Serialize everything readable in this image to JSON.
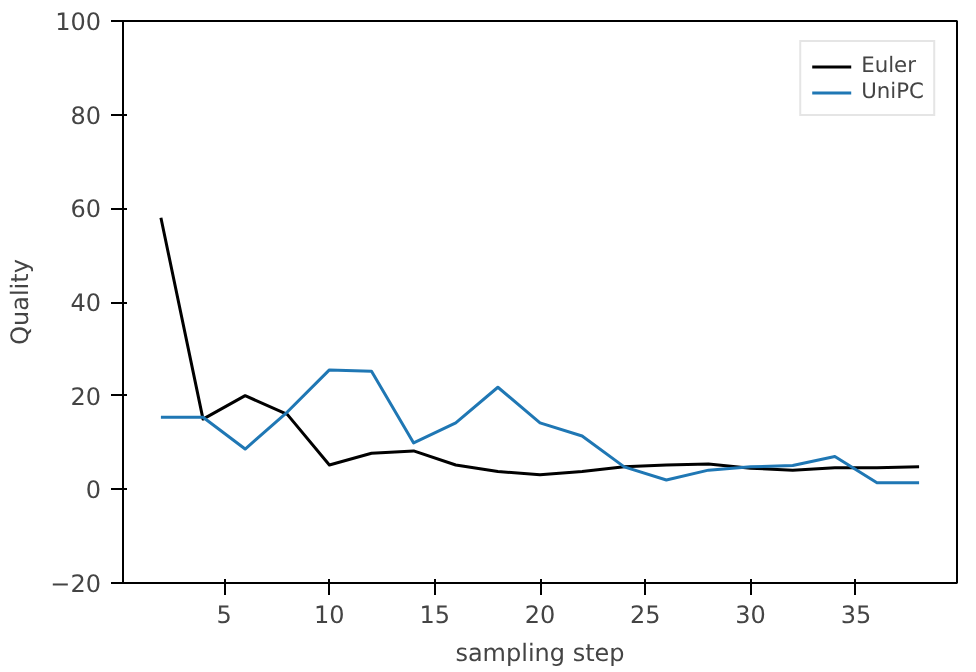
{
  "chart_data": {
    "type": "line",
    "xlabel": "sampling step",
    "ylabel": "Quality",
    "x": [
      2,
      4,
      6,
      8,
      10,
      12,
      14,
      16,
      18,
      20,
      22,
      24,
      26,
      28,
      30,
      32,
      34,
      36,
      38
    ],
    "series": [
      {
        "name": "Euler",
        "color": "#000000",
        "values": [
          58,
          15,
          20,
          16,
          5.2,
          7.7,
          8.2,
          5.2,
          3.8,
          3.1,
          3.8,
          4.8,
          5.2,
          5.4,
          4.5,
          4.1,
          4.6,
          4.6,
          4.8
        ]
      },
      {
        "name": "UniPC",
        "color": "#1f77b4",
        "values": [
          15.4,
          15.4,
          8.6,
          16.5,
          25.5,
          25.2,
          9.9,
          14.2,
          21.8,
          14.2,
          11.4,
          4.8,
          2,
          4.1,
          4.8,
          5.1,
          7,
          1.4,
          1.4
        ]
      }
    ],
    "xlim": [
      0.2,
      39.8
    ],
    "ylim": [
      -20,
      100
    ],
    "xticks": [
      5,
      10,
      15,
      20,
      25,
      30,
      35
    ],
    "yticks": [
      -20,
      0,
      20,
      40,
      60,
      80,
      100
    ],
    "grid": false,
    "legend": "top right",
    "line_style": "solid"
  }
}
